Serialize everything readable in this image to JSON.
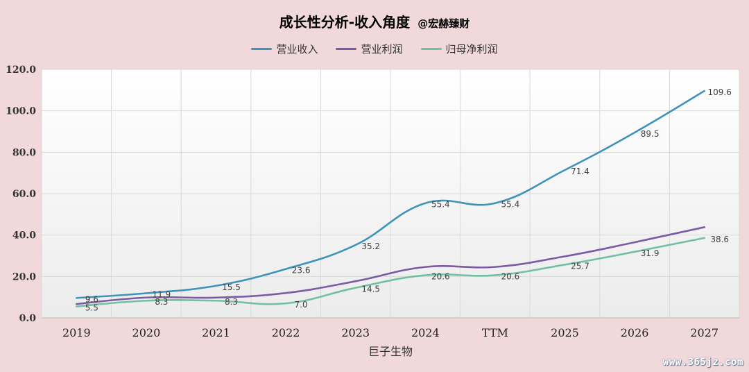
{
  "chart_data": {
    "type": "line",
    "title": "成长性分析-收入角度",
    "subtitle": "@宏赫臻财",
    "xlabel": "巨子生物",
    "ylabel": "",
    "categories": [
      "2019",
      "2020",
      "2021",
      "2022",
      "2023",
      "2024",
      "TTM",
      "2025",
      "2026",
      "2027"
    ],
    "ylim": [
      0,
      120
    ],
    "yticks": [
      "0.0",
      "20.0",
      "40.0",
      "60.0",
      "80.0",
      "100.0",
      "120.0"
    ],
    "grid": true,
    "legend_position": "top",
    "series": [
      {
        "name": "营业收入",
        "color": "#3d93b8",
        "values": [
          9.6,
          11.9,
          15.5,
          23.6,
          35.2,
          55.4,
          55.4,
          71.4,
          89.5,
          109.6
        ],
        "labels": [
          "9.6",
          "11.9",
          "15.5",
          "23.6",
          "35.2",
          "55.4",
          "55.4",
          "71.4",
          "89.5",
          "109.6"
        ],
        "show_labels": true
      },
      {
        "name": "营业利润",
        "color": "#7b5aa6",
        "values": [
          6.7,
          9.8,
          9.8,
          12.0,
          17.7,
          24.6,
          24.6,
          29.7,
          36.5,
          43.8
        ],
        "labels": [],
        "show_labels": false
      },
      {
        "name": "归母净利润",
        "color": "#72c0a2",
        "values": [
          5.5,
          8.3,
          8.3,
          7.0,
          14.5,
          20.6,
          20.6,
          25.7,
          31.9,
          38.6
        ],
        "labels": [
          "5.5",
          "8.3",
          "8.3",
          "7.0",
          "14.5",
          "20.6",
          "20.6",
          "25.7",
          "31.9",
          "38.6"
        ],
        "show_labels": true
      }
    ]
  },
  "watermark": "www.365jz.com"
}
